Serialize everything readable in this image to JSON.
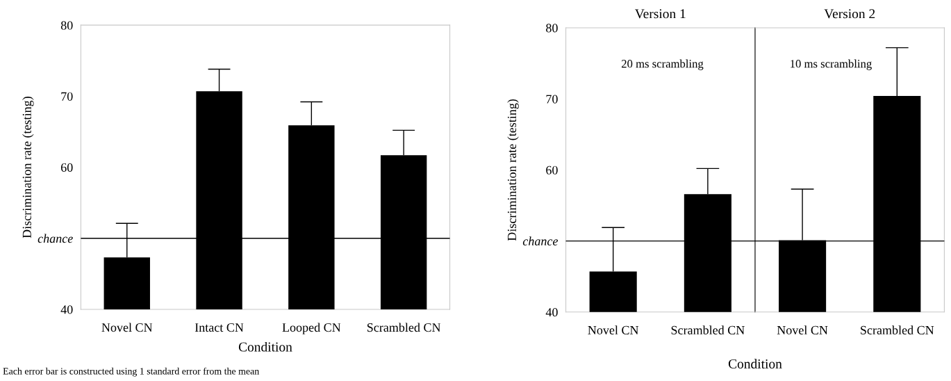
{
  "chart_data": [
    {
      "type": "bar",
      "xlabel": "Condition",
      "ylabel": "Discrimination rate (testing)",
      "categories": [
        "Novel CN",
        "Intact CN",
        "Looped CN",
        "Scrambled CN"
      ],
      "values": [
        47.3,
        70.7,
        65.9,
        61.7
      ],
      "errors": [
        [
          47.3,
          52.1
        ],
        [
          70.7,
          73.8
        ],
        [
          65.9,
          69.2
        ],
        [
          61.7,
          65.2
        ]
      ],
      "color": "#000000",
      "ylim": [
        40,
        80
      ],
      "yticks": [
        40,
        {
          "value": 50,
          "label": "chance"
        },
        60,
        70,
        80
      ],
      "ref_lines": [
        {
          "axis": "y",
          "value": 50,
          "color": "#000000"
        }
      ],
      "annotations": [
        "Each error bar is constructed using 1 standard error from the mean"
      ]
    },
    {
      "type": "bar",
      "title": "Version 1",
      "xlabel": "Condition",
      "ylabel": "Discrimination rate (testing)",
      "categories": [
        "Novel CN",
        "Scrambled CN"
      ],
      "values": [
        45.7,
        56.6
      ],
      "errors": [
        [
          45.7,
          51.9
        ],
        [
          56.6,
          60.2
        ]
      ],
      "color": "#000000",
      "ylim": [
        40,
        80
      ],
      "yticks": [
        40,
        {
          "value": 50,
          "label": "chance"
        },
        60,
        70,
        80
      ],
      "ref_lines": [
        {
          "axis": "y",
          "value": 50,
          "color": "#000000"
        }
      ],
      "annotations": [
        "20 ms scrambling"
      ]
    },
    {
      "type": "bar",
      "title": "Version 2",
      "categories": [
        "Novel CN",
        "Scrambled CN"
      ],
      "values": [
        50.1,
        70.4
      ],
      "errors": [
        [
          50.1,
          57.3
        ],
        [
          70.4,
          77.2
        ]
      ],
      "color": "#000000",
      "ylim": [
        40,
        80
      ],
      "tick_labels": "x",
      "ref_lines": [
        {
          "axis": "y",
          "value": 50,
          "color": "#000000"
        }
      ],
      "annotations": [
        "10 ms scrambling"
      ]
    }
  ]
}
